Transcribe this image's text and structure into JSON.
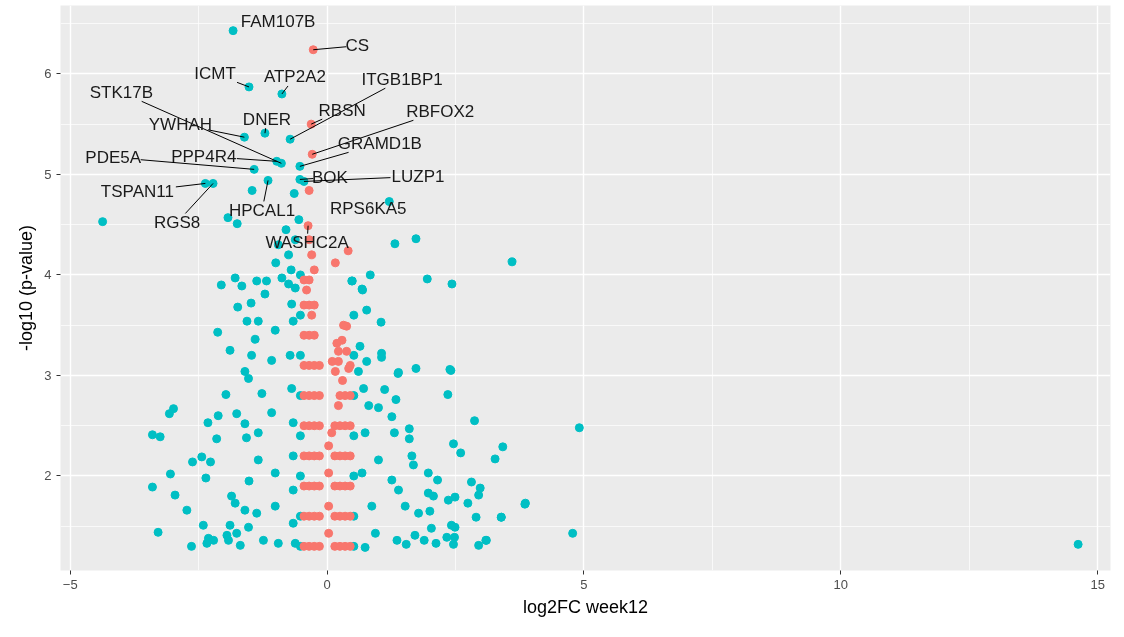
{
  "chart_data": {
    "type": "scatter",
    "xlabel": "log2FC week12",
    "ylabel": "-log10 (p-value)",
    "xlim": [
      -5.19,
      15.25
    ],
    "ylim": [
      1.06,
      6.68
    ],
    "xticks": [
      -5,
      0,
      5,
      10,
      15
    ],
    "yticks": [
      2,
      3,
      4,
      5,
      6
    ],
    "grid": true,
    "marker": "circle",
    "series": [
      {
        "color": "#00bfc4",
        "x": [
          -0.98,
          -0.45,
          -1.83,
          -1.52,
          -0.88,
          -0.72,
          -0.53,
          -1.21,
          -1.61,
          -0.89,
          -1.42,
          -0.53,
          -2.37,
          -2.22,
          -1.15,
          1.21,
          -4.37,
          -1.46,
          -0.64,
          -1.93,
          -1.75,
          1.32,
          1.73,
          3.6,
          0.84,
          1.95,
          2.43,
          0.49,
          0.68,
          -0.75,
          -0.62,
          -0.8,
          -0.55,
          -0.95,
          -0.7,
          -1.0,
          -3.4,
          -3.25,
          -3.07,
          -2.99,
          -3.4,
          -3.29,
          -3.05,
          -2.96,
          -2.73,
          -2.64,
          -2.62,
          -2.44,
          -2.27,
          -2.36,
          -2.32,
          -2.15,
          -2.13,
          -2.06,
          -1.89,
          -1.97,
          -1.79,
          -1.74,
          -1.56,
          -1.66,
          -1.48,
          -2.12,
          -1.76,
          -1.6,
          -1.57,
          -1.52,
          -1.86,
          -1.79,
          -1.89,
          -1.92,
          -1.76,
          -1.69,
          -1.6,
          -1.53,
          -2.41,
          -2.31,
          -2.34,
          -2.21,
          -1.95,
          -1.34,
          -1.4,
          -1.47,
          -1.6,
          -1.53,
          -1.27,
          -1.34,
          -1.34,
          -1.37,
          -1.24,
          -1.21,
          -1.18,
          -1.37,
          -1.01,
          -1.08,
          -1.08,
          -1.01,
          -1.01,
          -0.95,
          -0.88,
          -0.75,
          -0.62,
          -0.69,
          -0.66,
          -0.72,
          -0.69,
          -0.66,
          -0.66,
          -0.66,
          -0.66,
          -0.62,
          -0.52,
          -0.52,
          -0.52,
          -0.52,
          -0.52,
          -0.52,
          -0.52,
          -0.52,
          0.48,
          0.69,
          0.77,
          1.05,
          0.64,
          0.77,
          1.06,
          1.06,
          1.39,
          1.73,
          2.41,
          2.35,
          1.12,
          1.34,
          1.0,
          1.26,
          1.6,
          1.6,
          1.31,
          2.87,
          2.46,
          2.6,
          3.42,
          3.27,
          1.65,
          1.68,
          1.97,
          2.15,
          1.97,
          2.07,
          2.81,
          2.98,
          2.95,
          2.74,
          2.49,
          2.36,
          3.86,
          2.9,
          3.39,
          1.78,
          2.0,
          2.03,
          2.42,
          2.49,
          2.33,
          2.48,
          1.89,
          2.12,
          1.71,
          1.54,
          2.46,
          2.95,
          3.09,
          1.36,
          1.0,
          1.26,
          1.39,
          1.52,
          0.87,
          0.94,
          0.74,
          0.81,
          0.74,
          0.68,
          0.71,
          0.61,
          0.52,
          0.52,
          0.52,
          0.52,
          0.52,
          0.52,
          0.52,
          1.38,
          2.39,
          4.91,
          3.85,
          3.39,
          4.78,
          14.62,
          3.1
        ],
        "values": [
          5.13,
          4.93,
          6.43,
          5.87,
          5.8,
          5.35,
          5.08,
          5.41,
          5.37,
          5.11,
          5.05,
          4.95,
          4.91,
          4.91,
          4.94,
          4.73,
          4.53,
          4.84,
          4.81,
          4.57,
          4.51,
          4.31,
          4.36,
          4.13,
          4.0,
          3.96,
          3.91,
          3.94,
          3.86,
          4.2,
          4.35,
          4.45,
          4.55,
          4.3,
          4.05,
          4.12,
          2.41,
          2.39,
          2.62,
          2.67,
          1.89,
          1.44,
          2.02,
          1.81,
          1.66,
          1.3,
          2.14,
          2.19,
          2.14,
          1.98,
          2.53,
          2.37,
          3.43,
          3.9,
          3.25,
          2.81,
          3.97,
          3.68,
          3.54,
          3.89,
          3.72,
          2.6,
          2.62,
          2.52,
          2.38,
          1.95,
          1.8,
          1.73,
          1.51,
          1.36,
          1.43,
          1.31,
          1.66,
          1.49,
          1.51,
          1.38,
          1.33,
          1.36,
          1.41,
          3.54,
          3.36,
          3.2,
          3.04,
          2.97,
          2.82,
          2.43,
          2.16,
          1.63,
          1.36,
          3.81,
          3.94,
          3.94,
          3.45,
          3.15,
          2.63,
          2.03,
          1.7,
          1.33,
          3.97,
          3.91,
          3.87,
          3.71,
          3.54,
          3.2,
          2.87,
          2.53,
          2.2,
          1.86,
          1.53,
          1.33,
          1.3,
          1.6,
          2.0,
          2.4,
          2.8,
          3.2,
          3.6,
          4.0,
          3.94,
          3.85,
          3.65,
          3.53,
          3.29,
          3.14,
          3.22,
          3.18,
          3.03,
          3.07,
          3.05,
          2.81,
          2.86,
          2.76,
          2.68,
          2.59,
          2.47,
          2.37,
          2.43,
          2.55,
          2.32,
          2.23,
          2.29,
          2.17,
          2.2,
          2.11,
          2.03,
          1.96,
          1.83,
          1.8,
          1.94,
          1.88,
          1.81,
          1.73,
          1.79,
          1.76,
          1.73,
          1.59,
          1.59,
          1.63,
          1.65,
          1.48,
          1.51,
          1.49,
          1.39,
          1.39,
          1.36,
          1.33,
          1.41,
          1.32,
          1.32,
          1.31,
          1.36,
          1.36,
          2.16,
          1.96,
          1.86,
          1.7,
          1.7,
          1.43,
          1.29,
          2.7,
          2.43,
          2.03,
          2.87,
          3.04,
          1.3,
          1.6,
          2.0,
          2.4,
          2.8,
          3.2,
          3.6,
          3.02,
          3.06,
          2.48,
          1.72,
          1.59,
          1.43,
          1.32,
          1.36
        ]
      },
      {
        "color": "#f8766d",
        "x": [
          -0.27,
          -0.31,
          -0.29,
          -0.35,
          -0.37,
          -0.35,
          -0.3,
          -0.25,
          0.16,
          0.41,
          -0.45,
          -0.35,
          -0.25,
          -0.15,
          -0.45,
          -0.35,
          -0.25,
          -0.15,
          -0.45,
          -0.35,
          -0.25,
          -0.15,
          -0.45,
          -0.35,
          -0.25,
          -0.15,
          -0.45,
          -0.35,
          -0.25,
          -0.15,
          -0.45,
          -0.35,
          -0.25,
          -0.15,
          -0.45,
          -0.35,
          -0.25,
          -0.15,
          -0.45,
          -0.35,
          -0.25,
          -0.45,
          -0.35,
          -0.25,
          -0.45,
          -0.35,
          -0.4,
          -0.3,
          0.38,
          0.32,
          0.29,
          0.19,
          0.22,
          0.1,
          0.22,
          0.38,
          0.42,
          0.16,
          0.22,
          0.09,
          0.03,
          0.03,
          0.03,
          0.03,
          0.15,
          0.25,
          0.35,
          0.45,
          0.15,
          0.25,
          0.35,
          0.45,
          0.15,
          0.25,
          0.35,
          0.45,
          0.15,
          0.25,
          0.35,
          0.45,
          0.15,
          0.25,
          0.35,
          0.45,
          0.25,
          0.35,
          0.45,
          0.3,
          0.45
        ],
        "values": [
          6.24,
          5.5,
          5.2,
          4.84,
          4.49,
          4.35,
          4.2,
          4.05,
          4.12,
          4.24,
          1.3,
          1.3,
          1.3,
          1.3,
          1.6,
          1.6,
          1.6,
          1.6,
          1.9,
          1.9,
          1.9,
          1.9,
          2.2,
          2.2,
          2.2,
          2.2,
          2.5,
          2.5,
          2.5,
          2.5,
          2.8,
          2.8,
          2.8,
          2.8,
          3.1,
          3.1,
          3.1,
          3.1,
          3.4,
          3.4,
          3.4,
          3.7,
          3.7,
          3.7,
          3.95,
          3.95,
          3.85,
          3.6,
          3.49,
          3.5,
          3.35,
          3.32,
          3.24,
          3.14,
          3.14,
          3.24,
          3.07,
          3.04,
          2.7,
          2.43,
          2.3,
          2.03,
          1.7,
          1.43,
          1.3,
          1.3,
          1.3,
          1.3,
          1.6,
          1.6,
          1.6,
          1.6,
          1.9,
          1.9,
          1.9,
          1.9,
          2.2,
          2.2,
          2.2,
          2.2,
          2.5,
          2.5,
          2.5,
          2.5,
          2.8,
          2.8,
          2.8,
          2.95,
          3.1
        ]
      }
    ],
    "annotations": [
      {
        "text": "FAM107B",
        "x": -1.83,
        "y": 6.43
      },
      {
        "text": "CS",
        "x": -0.27,
        "y": 6.24
      },
      {
        "text": "ICMT",
        "x": -1.52,
        "y": 5.87
      },
      {
        "text": "ATP2A2",
        "x": -0.88,
        "y": 5.8
      },
      {
        "text": "ITGB1BP1",
        "x": -0.72,
        "y": 5.35
      },
      {
        "text": "STK17B",
        "x": -0.89,
        "y": 5.11
      },
      {
        "text": "RBSN",
        "x": -0.31,
        "y": 5.5
      },
      {
        "text": "RBFOX2",
        "x": -0.29,
        "y": 5.2
      },
      {
        "text": "YWHAH",
        "x": -1.61,
        "y": 5.37
      },
      {
        "text": "DNER",
        "x": -1.21,
        "y": 5.41
      },
      {
        "text": "GRAMD1B",
        "x": -0.53,
        "y": 5.08
      },
      {
        "text": "PDE5A",
        "x": -1.42,
        "y": 5.05
      },
      {
        "text": "PPP4R4",
        "x": -0.98,
        "y": 5.13
      },
      {
        "text": "BOK",
        "x": -0.53,
        "y": 4.95
      },
      {
        "text": "LUZP1",
        "x": -0.45,
        "y": 4.93
      },
      {
        "text": "TSPAN11",
        "x": -2.37,
        "y": 4.91
      },
      {
        "text": "RGS8",
        "x": -2.22,
        "y": 4.91
      },
      {
        "text": "HPCAL1",
        "x": -1.15,
        "y": 4.94
      },
      {
        "text": "RPS6KA5",
        "x": 1.21,
        "y": 4.73
      },
      {
        "text": "WASHC2A",
        "x": -0.37,
        "y": 4.49
      }
    ]
  }
}
